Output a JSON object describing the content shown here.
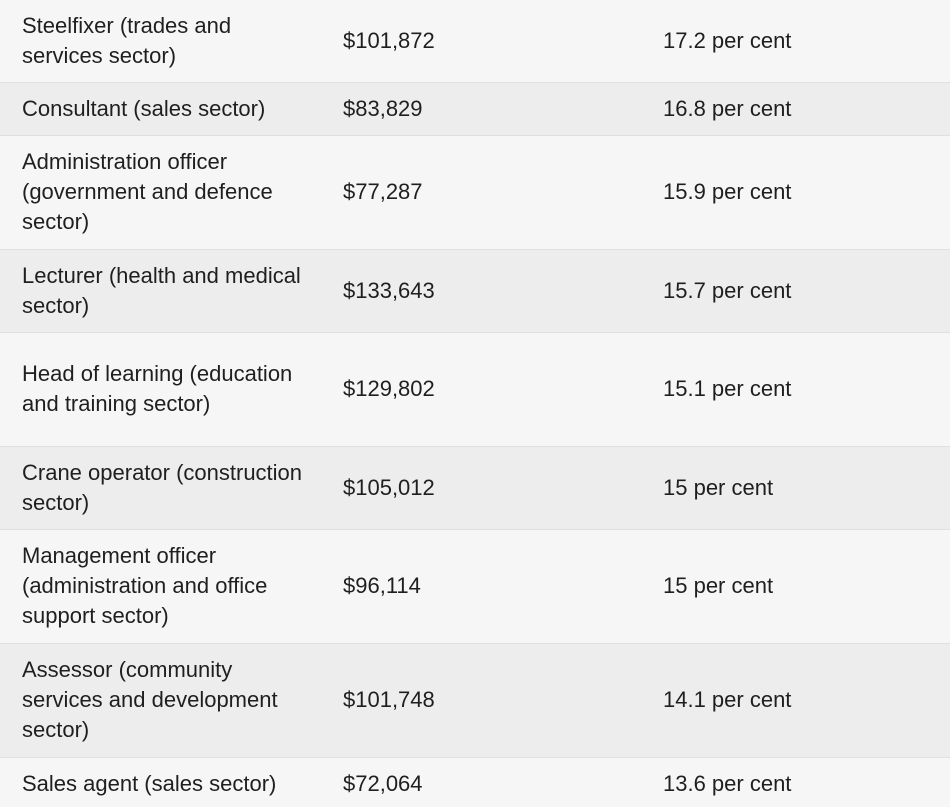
{
  "rows": [
    {
      "occupation": "Steelfixer (trades and services sector)",
      "salary": "$101,872",
      "growth": "17.2 per cent"
    },
    {
      "occupation": "Consultant (sales sector)",
      "salary": "$83,829",
      "growth": "16.8 per cent"
    },
    {
      "occupation": "Administration officer (government and defence sector)",
      "salary": "$77,287",
      "growth": "15.9 per cent"
    },
    {
      "occupation": "Lecturer (health and medical sector)",
      "salary": "$133,643",
      "growth": "15.7 per cent"
    },
    {
      "occupation": "Head of learning (education and training sector)",
      "salary": "$129,802",
      "growth": "15.1 per cent"
    },
    {
      "occupation": "Crane operator (construction sector)",
      "salary": "$105,012",
      "growth": "15 per cent"
    },
    {
      "occupation": "Management officer (administration and office support sector)",
      "salary": "$96,114",
      "growth": "15 per cent"
    },
    {
      "occupation": "Assessor (community services and development sector)",
      "salary": "$101,748",
      "growth": "14.1 per cent"
    },
    {
      "occupation": "Sales agent (sales sector)",
      "salary": "$72,064",
      "growth": "13.6 per cent"
    }
  ]
}
